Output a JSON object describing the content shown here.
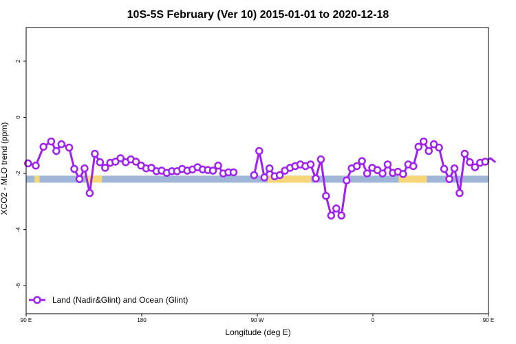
{
  "chart_data": {
    "type": "line",
    "title": "10S-5S February (Ver 10)   2015-01-01 to 2020-12-18",
    "xlabel": "Longitude (deg E)",
    "ylabel": "XCO2 - MLO trend (ppm)",
    "xlim": [
      90,
      450
    ],
    "ylim": [
      -7.0,
      3.2
    ],
    "x_ticks": [
      {
        "value": 90,
        "label": "90 E"
      },
      {
        "value": 180,
        "label": "180"
      },
      {
        "value": 270,
        "label": "90 W"
      },
      {
        "value": 360,
        "label": "0"
      },
      {
        "value": 450,
        "label": "90 E"
      },
      {
        "value": 540,
        "label": "180"
      }
    ],
    "y_ticks": [
      {
        "value": 2,
        "label": "2"
      },
      {
        "value": 0,
        "label": "0"
      },
      {
        "value": -2,
        "label": "-2"
      },
      {
        "value": -4,
        "label": "-4"
      },
      {
        "value": -6,
        "label": "-6"
      }
    ],
    "grid": false,
    "legend_position": "bottom-left",
    "colors": {
      "series": "#a020f0",
      "ocean_band": "#9fb6d6",
      "land_band": "#f5d77a"
    },
    "land_mask_band": {
      "y_range": [
        -2.33,
        -2.08
      ],
      "land_segments": [
        [
          96.5,
          100.5
        ],
        [
          137,
          149
        ],
        [
          278,
          312
        ],
        [
          380,
          402
        ],
        [
          483,
          483.5
        ],
        [
          505,
          506
        ]
      ]
    },
    "series": [
      {
        "name": "Land (Nadir&Glint) and Ocean (Glint)",
        "segments": [
          [
            [
              91.5,
              -1.64
            ],
            [
              97.5,
              -1.72
            ],
            [
              103.5,
              -1.05
            ],
            [
              109.5,
              -0.86
            ],
            [
              113.5,
              -1.2
            ],
            [
              117.5,
              -0.96
            ],
            [
              123.5,
              -1.08
            ],
            [
              127.5,
              -1.84
            ],
            [
              131.5,
              -2.2
            ],
            [
              135.5,
              -1.82
            ],
            [
              139.5,
              -2.7
            ],
            [
              143.5,
              -1.3
            ],
            [
              147.5,
              -1.6
            ],
            [
              151.5,
              -1.8
            ],
            [
              155.5,
              -1.62
            ],
            [
              159.5,
              -1.58
            ],
            [
              163.5,
              -1.46
            ],
            [
              167.5,
              -1.6
            ],
            [
              171.5,
              -1.5
            ],
            [
              175.5,
              -1.58
            ],
            [
              179.5,
              -1.72
            ],
            [
              183.5,
              -1.82
            ],
            [
              187.5,
              -1.8
            ],
            [
              191.5,
              -1.92
            ],
            [
              195.5,
              -1.9
            ],
            [
              199.5,
              -1.98
            ],
            [
              203.5,
              -1.92
            ],
            [
              207.5,
              -1.92
            ],
            [
              211.5,
              -1.84
            ],
            [
              215.5,
              -1.9
            ],
            [
              219.5,
              -1.86
            ],
            [
              223.5,
              -1.78
            ],
            [
              227.5,
              -1.86
            ],
            [
              231.5,
              -1.88
            ],
            [
              235.5,
              -1.9
            ],
            [
              239.5,
              -1.72
            ],
            [
              243.5,
              -2.0
            ],
            [
              247.5,
              -1.96
            ],
            [
              251.5,
              -1.96
            ]
          ],
          [
            [
              267.5,
              -2.06
            ],
            [
              271.5,
              -1.2
            ],
            [
              275.5,
              -2.14
            ],
            [
              279.5,
              -1.82
            ],
            [
              283.5,
              -2.1
            ],
            [
              287.5,
              -2.06
            ],
            [
              291.5,
              -1.9
            ],
            [
              295.5,
              -1.8
            ],
            [
              299.5,
              -1.74
            ],
            [
              303.5,
              -1.68
            ],
            [
              307.5,
              -1.74
            ],
            [
              311.5,
              -1.68
            ],
            [
              315.5,
              -2.18
            ],
            [
              319.5,
              -1.5
            ],
            [
              323.5,
              -2.8
            ],
            [
              327.5,
              -3.5
            ],
            [
              331.5,
              -3.25
            ],
            [
              335.5,
              -3.5
            ],
            [
              339.5,
              -2.25
            ],
            [
              343.5,
              -1.82
            ],
            [
              347.5,
              -1.74
            ],
            [
              351.5,
              -1.56
            ],
            [
              355.5,
              -2.0
            ],
            [
              359.5,
              -1.8
            ],
            [
              363.5,
              -1.88
            ],
            [
              367.5,
              -2.0
            ],
            [
              371.5,
              -1.68
            ],
            [
              375.5,
              -1.98
            ],
            [
              379.5,
              -1.94
            ],
            [
              383.5,
              -2.02
            ],
            [
              387.5,
              -1.68
            ],
            [
              391.5,
              -1.74
            ],
            [
              395.5,
              -1.05
            ],
            [
              399.5,
              -0.86
            ],
            [
              403.5,
              -1.2
            ],
            [
              407.5,
              -0.96
            ],
            [
              411.5,
              -1.08
            ],
            [
              415.5,
              -1.84
            ],
            [
              419.5,
              -2.2
            ],
            [
              423.5,
              -1.82
            ],
            [
              427.5,
              -2.7
            ],
            [
              431.5,
              -1.3
            ],
            [
              435.5,
              -1.6
            ],
            [
              439.5,
              -1.78
            ],
            [
              443.5,
              -1.62
            ],
            [
              447.5,
              -1.58
            ],
            [
              451.5,
              -1.46
            ],
            [
              455.5,
              -1.6
            ]
          ]
        ]
      }
    ]
  }
}
